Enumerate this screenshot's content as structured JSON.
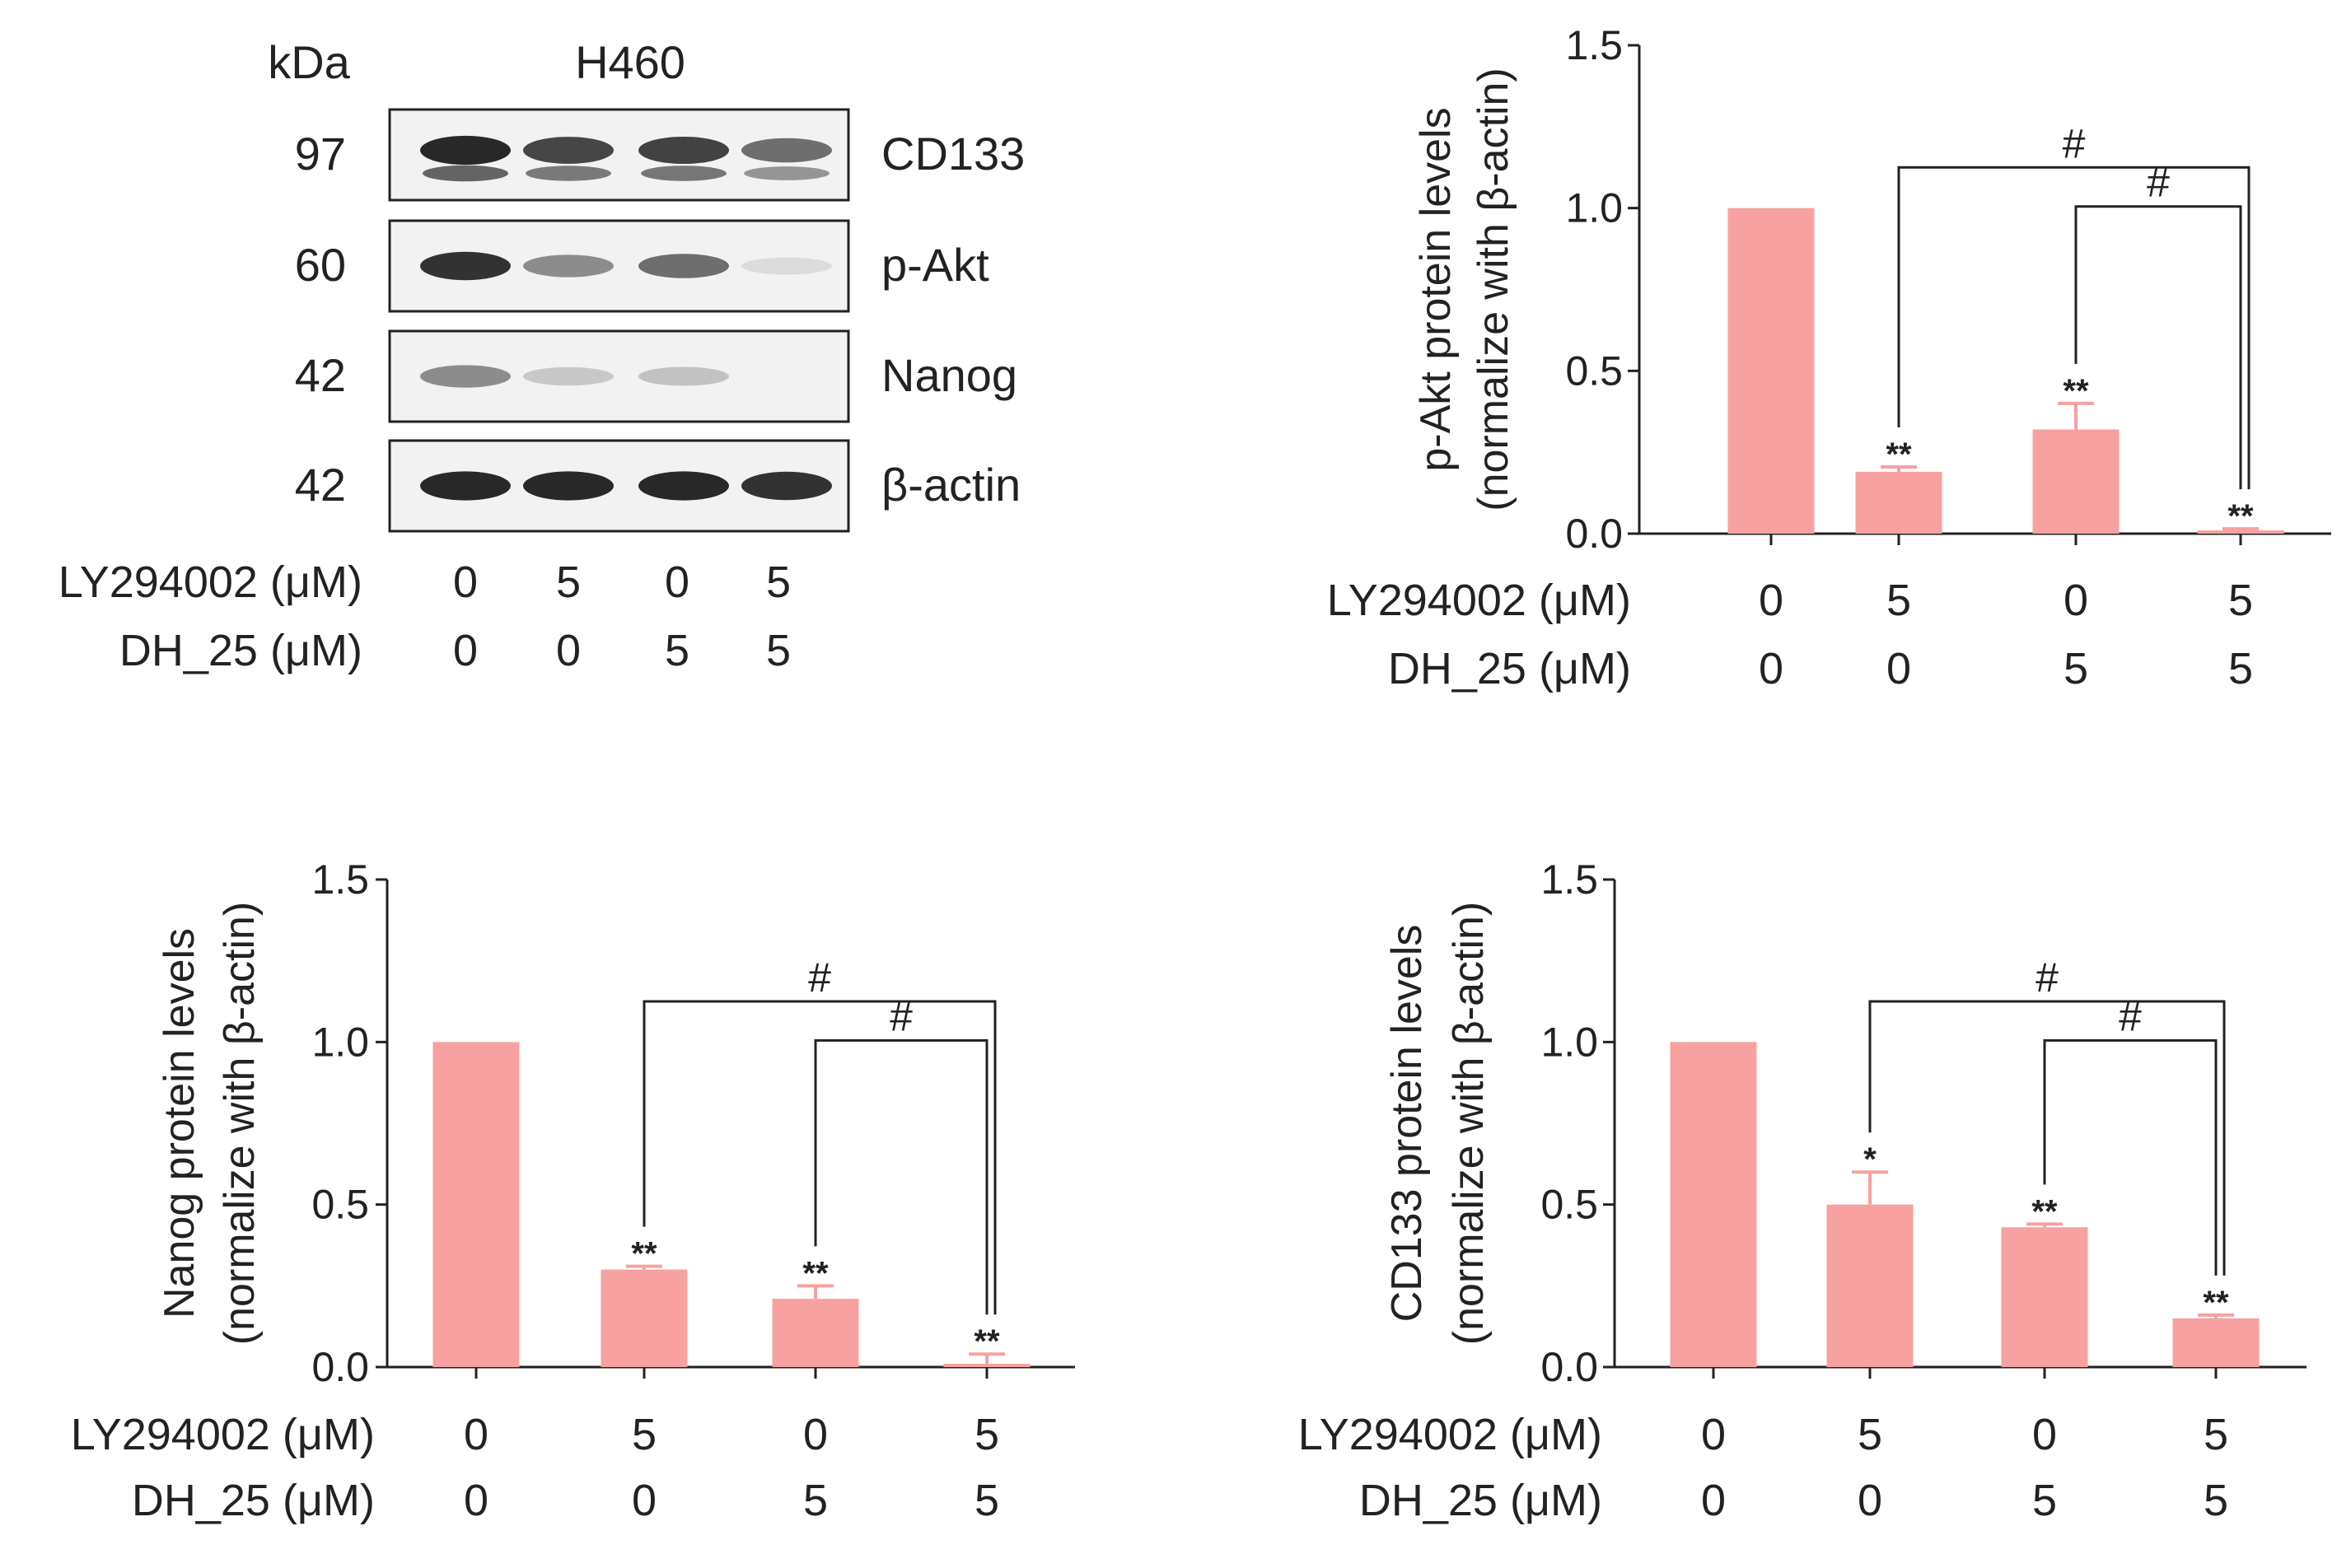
{
  "figure": {
    "blot": {
      "kda_header": "kDa",
      "cell_line": "H460",
      "bands": [
        {
          "protein": "CD133",
          "kda": "97",
          "intensity": [
            0.95,
            0.8,
            0.82,
            0.6
          ],
          "double": true
        },
        {
          "protein": "p-Akt",
          "kda": "60",
          "intensity": [
            0.9,
            0.45,
            0.6,
            0.05
          ],
          "double": false
        },
        {
          "protein": "Nanog",
          "kda": "42",
          "intensity": [
            0.45,
            0.15,
            0.18,
            0.0
          ],
          "double": false
        },
        {
          "protein": "β-actin",
          "kda": "42",
          "intensity": [
            0.95,
            0.95,
            0.95,
            0.9
          ],
          "double": false
        }
      ],
      "conditions": [
        {
          "label": "LY294002 (μM)",
          "values": [
            "0",
            "5",
            "0",
            "5"
          ]
        },
        {
          "label": "DH_25 (μM)",
          "values": [
            "0",
            "0",
            "5",
            "5"
          ]
        }
      ]
    }
  },
  "chart_data": [
    {
      "type": "bar",
      "ylabel_line1": "p-Akt protein levels",
      "ylabel_line2": "(normalize with β-actin)",
      "categories": [
        "1",
        "2",
        "3",
        "4"
      ],
      "values": [
        1.0,
        0.19,
        0.32,
        0.01
      ],
      "errors": [
        0,
        0.015,
        0.08,
        0.005
      ],
      "significance": [
        "",
        "**",
        "**",
        "**"
      ],
      "comparisons": [
        {
          "from": 1,
          "to": 3,
          "label": "#"
        },
        {
          "from": 2,
          "to": 3,
          "label": "#"
        }
      ],
      "ylim": [
        0,
        1.5
      ],
      "yticks": [
        "0.0",
        "0.5",
        "1.0",
        "1.5"
      ],
      "color": "#f7a1a1",
      "conditions": [
        {
          "label": "LY294002 (μM)",
          "values": [
            "0",
            "5",
            "0",
            "5"
          ]
        },
        {
          "label": "DH_25 (μM)",
          "values": [
            "0",
            "0",
            "5",
            "5"
          ]
        }
      ]
    },
    {
      "type": "bar",
      "ylabel_line1": "Nanog protein levels",
      "ylabel_line2": "(normalize with β-actin)",
      "categories": [
        "1",
        "2",
        "3",
        "4"
      ],
      "values": [
        1.0,
        0.3,
        0.21,
        0.01
      ],
      "errors": [
        0,
        0.01,
        0.04,
        0.03
      ],
      "significance": [
        "",
        "**",
        "**",
        "**"
      ],
      "comparisons": [
        {
          "from": 1,
          "to": 3,
          "label": "#"
        },
        {
          "from": 2,
          "to": 3,
          "label": "#"
        }
      ],
      "ylim": [
        0,
        1.5
      ],
      "yticks": [
        "0.0",
        "0.5",
        "1.0",
        "1.5"
      ],
      "color": "#f7a1a1",
      "conditions": [
        {
          "label": "LY294002 (μM)",
          "values": [
            "0",
            "5",
            "0",
            "5"
          ]
        },
        {
          "label": "DH_25 (μM)",
          "values": [
            "0",
            "0",
            "5",
            "5"
          ]
        }
      ]
    },
    {
      "type": "bar",
      "ylabel_line1": "CD133 protein levels",
      "ylabel_line2": "(normalize with β-actin)",
      "categories": [
        "1",
        "2",
        "3",
        "4"
      ],
      "values": [
        1.0,
        0.5,
        0.43,
        0.15
      ],
      "errors": [
        0,
        0.1,
        0.01,
        0.01
      ],
      "significance": [
        "",
        "*",
        "**",
        "**"
      ],
      "comparisons": [
        {
          "from": 1,
          "to": 3,
          "label": "#"
        },
        {
          "from": 2,
          "to": 3,
          "label": "#"
        }
      ],
      "ylim": [
        0,
        1.5
      ],
      "yticks": [
        "0.0",
        "0.5",
        "1.0",
        "1.5"
      ],
      "color": "#f7a1a1",
      "conditions": [
        {
          "label": "LY294002 (μM)",
          "values": [
            "0",
            "5",
            "0",
            "5"
          ]
        },
        {
          "label": "DH_25 (μM)",
          "values": [
            "0",
            "0",
            "5",
            "5"
          ]
        }
      ]
    }
  ]
}
